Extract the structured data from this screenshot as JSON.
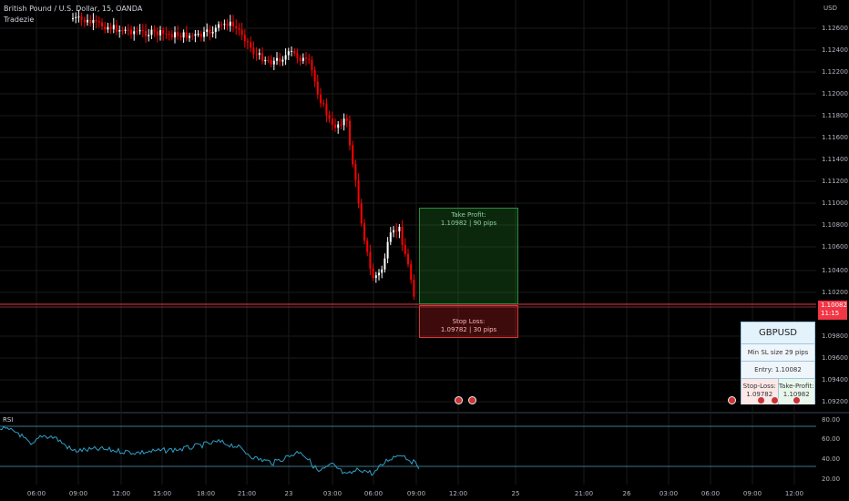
{
  "header": {
    "symbol_title": "British Pound / U.S. Dollar, 15, OANDA",
    "indicator": "Tradezie"
  },
  "price_axis": {
    "currency": "USD",
    "labels": [
      "1.12600",
      "1.12400",
      "1.12200",
      "1.12000",
      "1.11800",
      "1.11600",
      "1.11400",
      "1.11200",
      "1.11000",
      "1.10800",
      "1.10600",
      "1.10400",
      "1.10200",
      "1.09800",
      "1.09600",
      "1.09400",
      "1.09200"
    ]
  },
  "current_price": {
    "value": "1.10082",
    "countdown": "11:15"
  },
  "time_axis": [
    "06:00",
    "09:00",
    "12:00",
    "15:00",
    "18:00",
    "21:00",
    "23",
    "03:00",
    "06:00",
    "09:00",
    "12:00",
    "25",
    "21:00",
    "26",
    "03:00",
    "06:00",
    "09:00",
    "12:00"
  ],
  "rsi": {
    "label": "RSI",
    "levels": [
      "80.00",
      "60.00",
      "40.00",
      "20.00"
    ]
  },
  "position": {
    "take_profit_text": "Take Profit:",
    "take_profit_value": "1.10982 | 90 pips",
    "stop_loss_text": "Stop Loss:",
    "stop_loss_value": "1.09782 | 30 pips"
  },
  "info_card": {
    "symbol": "GBPUSD",
    "min_sl": "Min SL size 29 pips",
    "entry": "Entry: 1.10082",
    "sl_label": "Stop-Loss:",
    "sl_value": "1.09782",
    "tp_label": "Take-Profit:",
    "tp_value": "1.10982"
  },
  "colors": {
    "up_candle": "#ffffff",
    "down_candle": "#ff0000",
    "rsi_line": "#2fa0c8",
    "grid": "#1a1a1a"
  }
}
